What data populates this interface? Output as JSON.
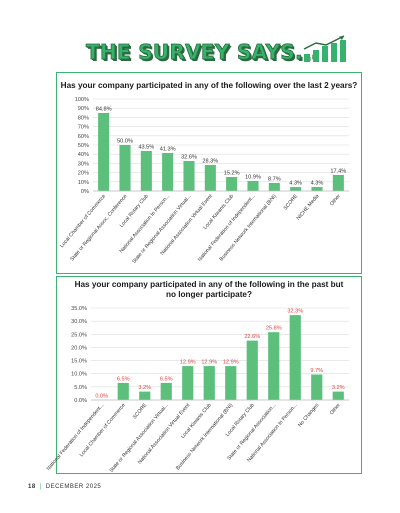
{
  "header": {
    "title": "THE SURVEY SAYS..."
  },
  "footer": {
    "page_number": "18",
    "issue_date": "DECEMBER 2025"
  },
  "chart_data": [
    {
      "type": "bar",
      "title": "Has your company participated in any of the following over the last 2 years?",
      "categories": [
        "Local Chamber of Commerce",
        "State or Regional Assoc. Conference",
        "Local Rotary Club",
        "National Association In Person...",
        "State or Regional Association Virtual...",
        "National Association Virtual Event",
        "Local Kiwanis Club",
        "National Federation of Independent...",
        "Business Network International (BNI)",
        "SCORE",
        "NICHE Media",
        "Other"
      ],
      "values": [
        84.8,
        50.0,
        43.5,
        41.3,
        32.6,
        28.3,
        15.2,
        10.9,
        8.7,
        4.3,
        4.3,
        17.4
      ],
      "data_labels": [
        "84.8%",
        "50.0%",
        "43.5%",
        "41.3%",
        "32.6%",
        "28.3%",
        "15.2%",
        "10.9%",
        "8.7%",
        "4.3%",
        "4.3%",
        "17.4%"
      ],
      "ytick_labels": [
        "0%",
        "10%",
        "20%",
        "30%",
        "40%",
        "50%",
        "60%",
        "70%",
        "80%",
        "90%",
        "100%"
      ],
      "ylim": [
        0,
        100
      ],
      "grid": true,
      "bar_color": "#5cbf7c",
      "label_color": "#333333"
    },
    {
      "type": "bar",
      "title_lines": [
        "Has your company participated in any of the following in the past but",
        "no longer participate?"
      ],
      "categories": [
        "National Federation of Independent...",
        "Local Chamber of Commerce",
        "SCORE",
        "State or Regional Association Virtual...",
        "National Association Virtual Event",
        "Local Kiwanis Club",
        "Business Network International (BNI)",
        "Local Rotary Club",
        "State or Regional Association...",
        "National Association In Person...",
        "No Changes",
        "Other"
      ],
      "values": [
        0.0,
        6.5,
        3.2,
        6.5,
        12.9,
        12.9,
        12.9,
        22.6,
        25.8,
        32.3,
        9.7,
        3.2
      ],
      "data_labels": [
        "0.0%",
        "6.5%",
        "3.2%",
        "6.5%",
        "12.9%",
        "12.9%",
        "12.9%",
        "22.6%",
        "25.8%",
        "32.3%",
        "9.7%",
        "3.2%"
      ],
      "ytick_labels": [
        "0.0%",
        "5.0%",
        "10.0%",
        "15.0%",
        "20.0%",
        "25.0%",
        "30.0%",
        "35.0%"
      ],
      "ylim": [
        0,
        35
      ],
      "grid": true,
      "bar_color": "#5cbf7c",
      "label_color": "#e0443a"
    }
  ]
}
